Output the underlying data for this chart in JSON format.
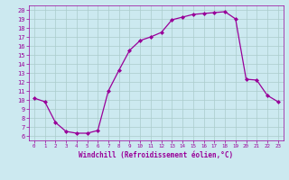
{
  "x": [
    0,
    1,
    2,
    3,
    4,
    5,
    6,
    7,
    8,
    9,
    10,
    11,
    12,
    13,
    14,
    15,
    16,
    17,
    18,
    19,
    20,
    21,
    22,
    23
  ],
  "y": [
    10.2,
    9.8,
    7.5,
    6.5,
    6.3,
    6.3,
    6.6,
    11.0,
    13.3,
    15.5,
    16.6,
    17.0,
    17.5,
    18.9,
    19.2,
    19.5,
    19.6,
    19.7,
    19.8,
    19.0,
    12.3,
    12.2,
    10.5,
    9.8
  ],
  "line_color": "#990099",
  "marker": "D",
  "marker_size": 2.0,
  "bg_color": "#cce9f0",
  "grid_color": "#aacccc",
  "xlabel": "Windchill (Refroidissement éolien,°C)",
  "xlabel_color": "#990099",
  "tick_color": "#990099",
  "ylim": [
    5.5,
    20.5
  ],
  "xlim": [
    -0.5,
    23.5
  ],
  "yticks": [
    6,
    7,
    8,
    9,
    10,
    11,
    12,
    13,
    14,
    15,
    16,
    17,
    18,
    19,
    20
  ],
  "xticks": [
    0,
    1,
    2,
    3,
    4,
    5,
    6,
    7,
    8,
    9,
    10,
    11,
    12,
    13,
    14,
    15,
    16,
    17,
    18,
    19,
    20,
    21,
    22,
    23
  ],
  "figsize": [
    3.2,
    2.0
  ],
  "dpi": 100
}
